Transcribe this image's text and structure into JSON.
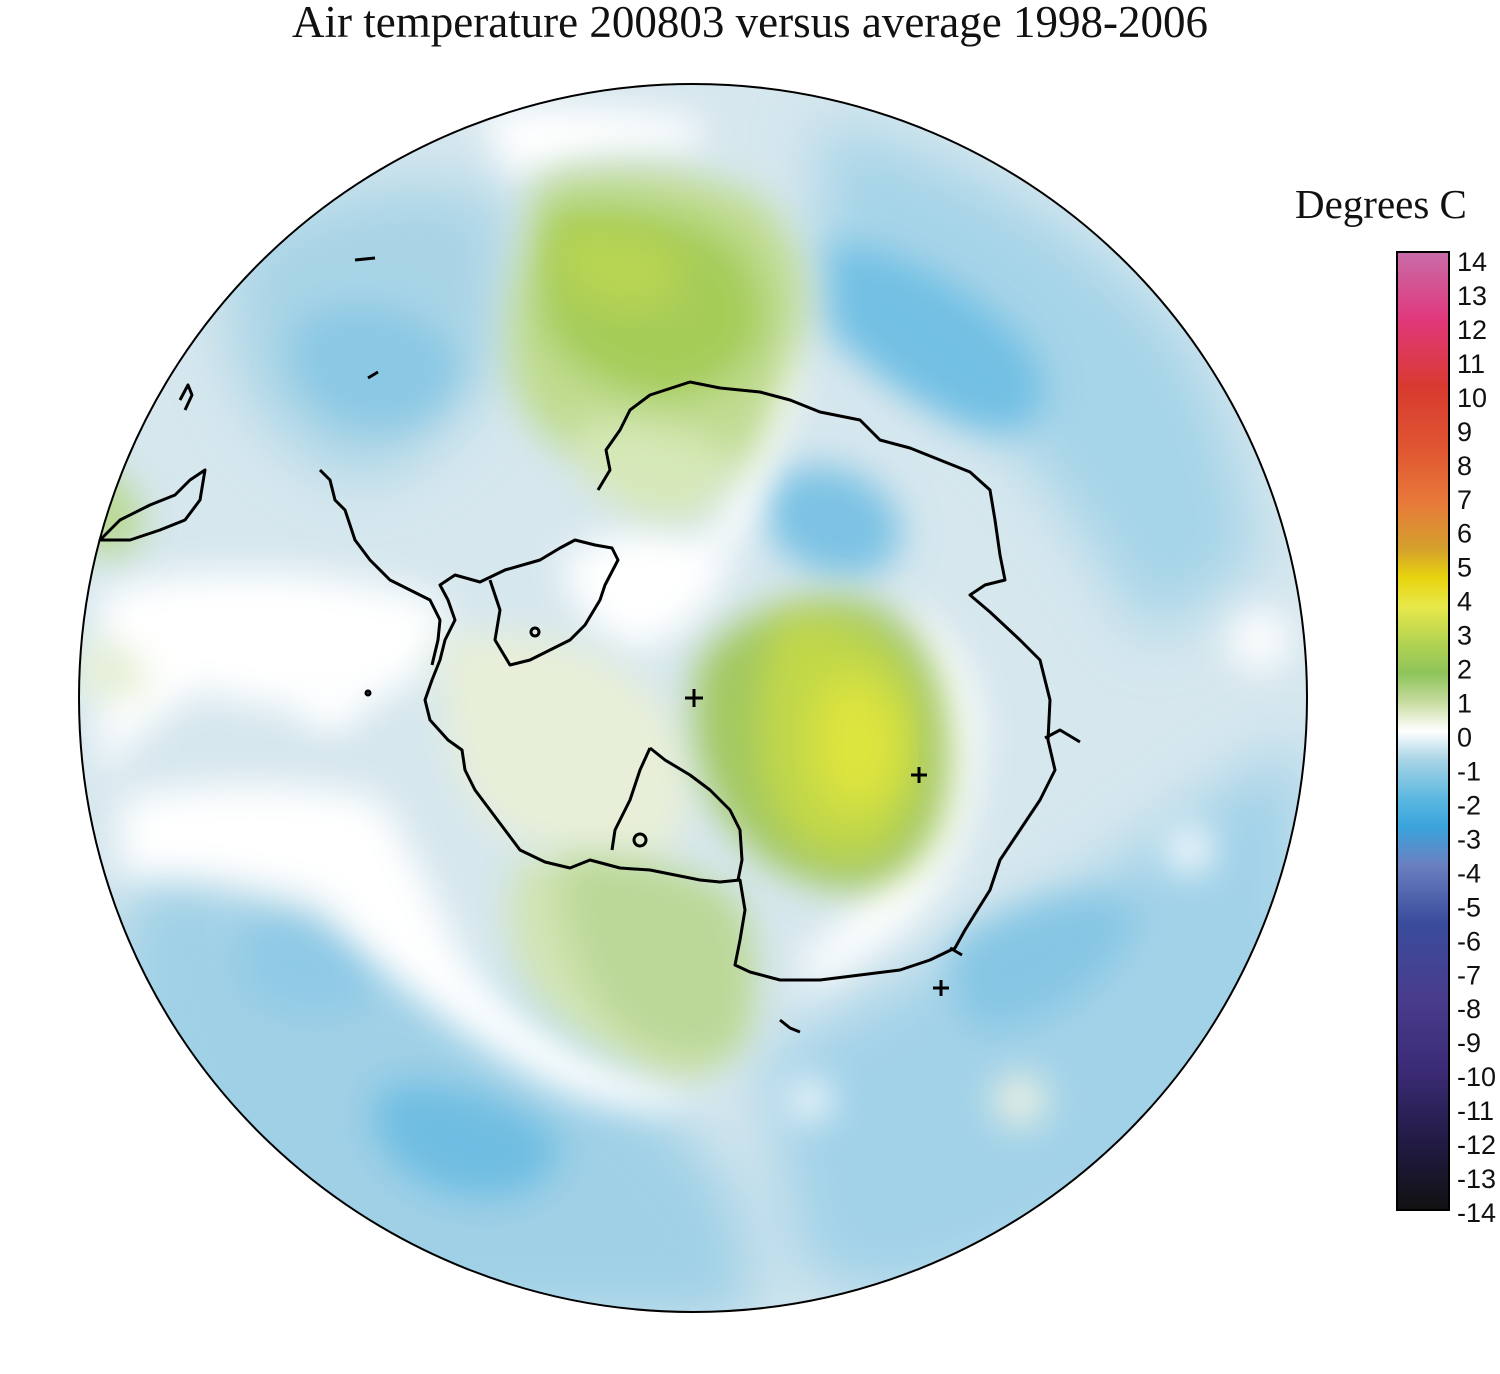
{
  "title": "Air temperature 200803 versus average 1998-2006",
  "legend": {
    "title": "Degrees C",
    "ticks": [
      14,
      13,
      12,
      11,
      10,
      9,
      8,
      7,
      6,
      5,
      4,
      3,
      2,
      1,
      0,
      -1,
      -2,
      -3,
      -4,
      -5,
      -6,
      -7,
      -8,
      -9,
      -10,
      -11,
      -12,
      -13,
      -14
    ],
    "range": [
      -14,
      14
    ],
    "colors": {
      "14": "#c86ca8",
      "12": "#e0387c",
      "10": "#d83a30",
      "8": "#e8783a",
      "6": "#d4a02c",
      "5": "#e8d40e",
      "4": "#e8e84a",
      "3": "#b0d252",
      "2": "#8ec45a",
      "1": "#c8dca0",
      "0": "#ffffff",
      "-1": "#a8d4e6",
      "-2": "#5cb8e0",
      "-3": "#3aa4dc",
      "-4": "#6a80c0",
      "-6": "#3a4c9c",
      "-8": "#4a3c8c",
      "-10": "#3c2c78",
      "-12": "#221a44",
      "-14": "#111111"
    }
  },
  "map": {
    "projection": "south-polar-stereographic",
    "region": "Antarctica"
  }
}
